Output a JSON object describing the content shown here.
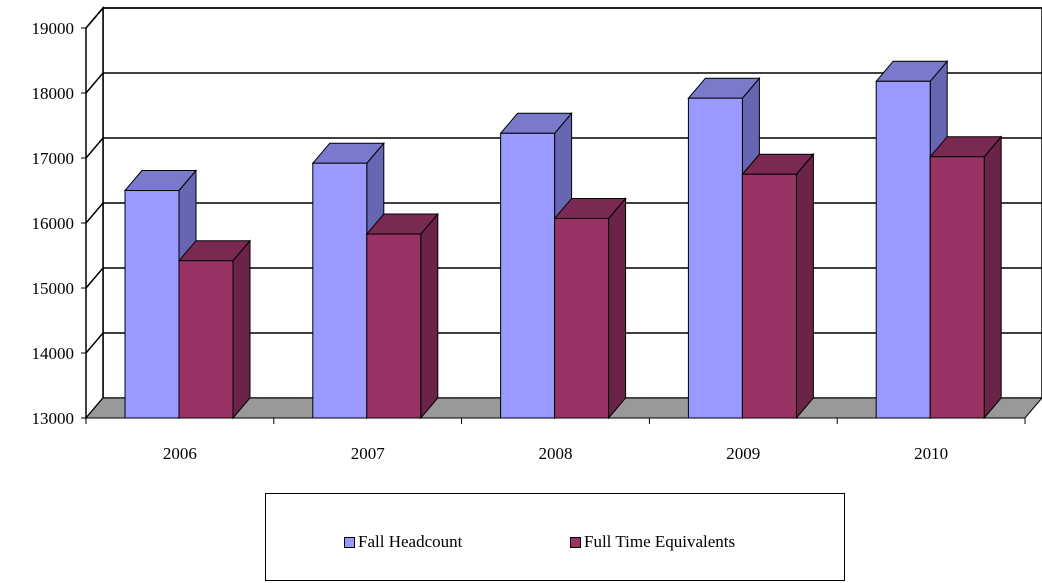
{
  "chart_data": {
    "type": "bar",
    "title": "",
    "xlabel": "",
    "ylabel": "",
    "categories": [
      "2006",
      "2007",
      "2008",
      "2009",
      "2010"
    ],
    "series": [
      {
        "name": "Fall Headcount",
        "values": [
          16500,
          16920,
          17380,
          17920,
          18180
        ]
      },
      {
        "name": "Full Time Equivalents",
        "values": [
          15420,
          15830,
          16070,
          16750,
          17020
        ]
      }
    ],
    "ylim": [
      13000,
      19000
    ],
    "yticks": [
      "13000",
      "14000",
      "15000",
      "16000",
      "17000",
      "18000",
      "19000"
    ],
    "grid": true,
    "legend_position": "bottom",
    "colors": {
      "Fall Headcount": "#9999ff",
      "Fall Headcount_side": "#6666b3",
      "Fall Headcount_top": "#7a7acc",
      "Full Time Equivalents": "#993366",
      "Full Time Equivalents_side": "#6b2347",
      "Full Time Equivalents_top": "#7a2952",
      "floor": "#999999",
      "wall": "#ffffff"
    }
  }
}
